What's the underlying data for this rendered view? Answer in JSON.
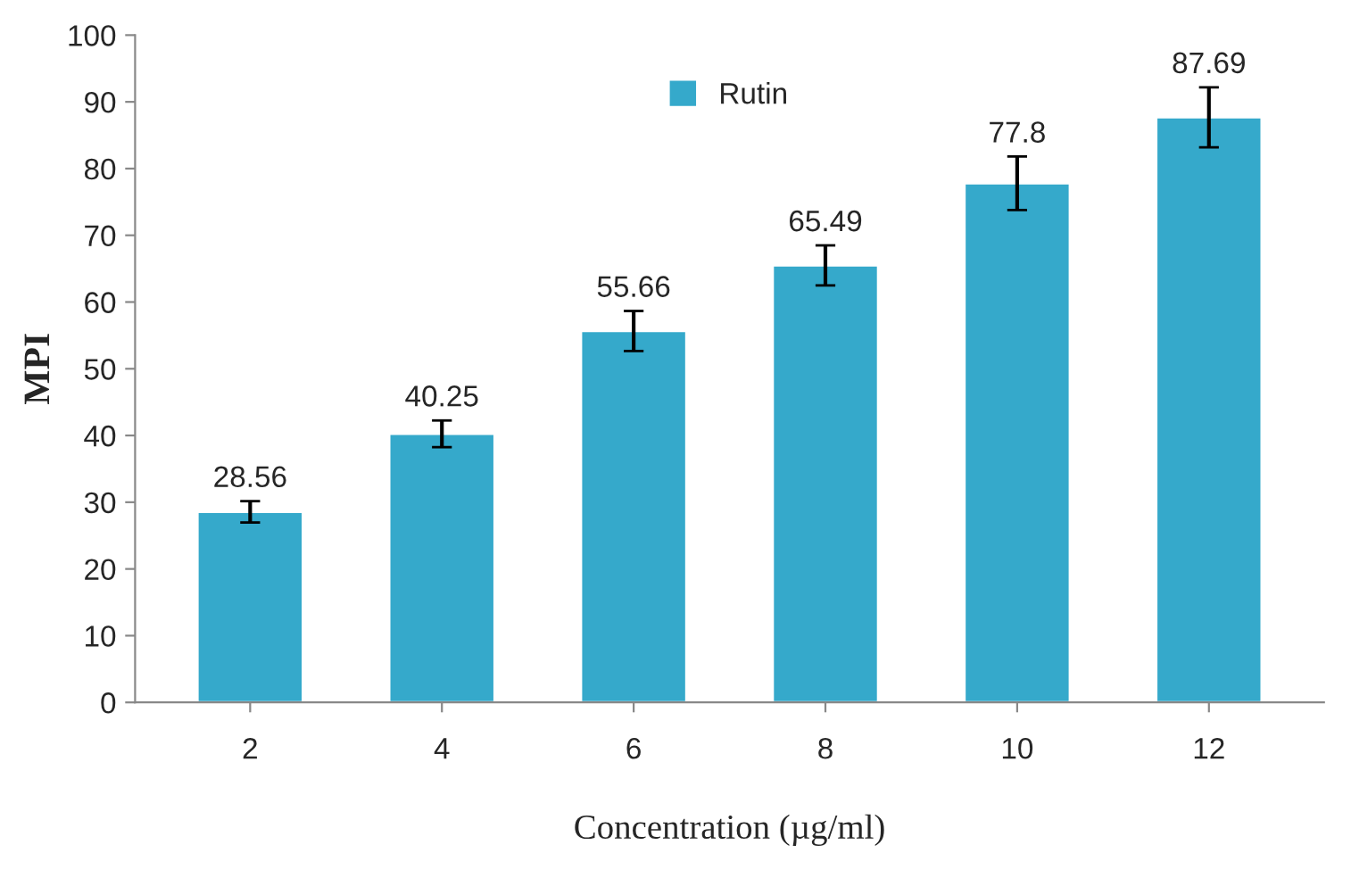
{
  "chart_data": {
    "type": "bar",
    "xlabel": "Concentration (µg/ml)",
    "ylabel": "MPI",
    "categories": [
      "2",
      "4",
      "6",
      "8",
      "10",
      "12"
    ],
    "series": [
      {
        "name": "Rutin",
        "color": "#35a9cb",
        "values": [
          28.56,
          40.25,
          55.66,
          65.49,
          77.8,
          87.69
        ],
        "errors": [
          1.6,
          2,
          3,
          3,
          4,
          4.5
        ]
      }
    ],
    "ylim": [
      0,
      100
    ],
    "yticks": [
      0,
      10,
      20,
      30,
      40,
      50,
      60,
      70,
      80,
      90,
      100
    ],
    "data_labels": true,
    "legend": "top",
    "grid": false
  }
}
